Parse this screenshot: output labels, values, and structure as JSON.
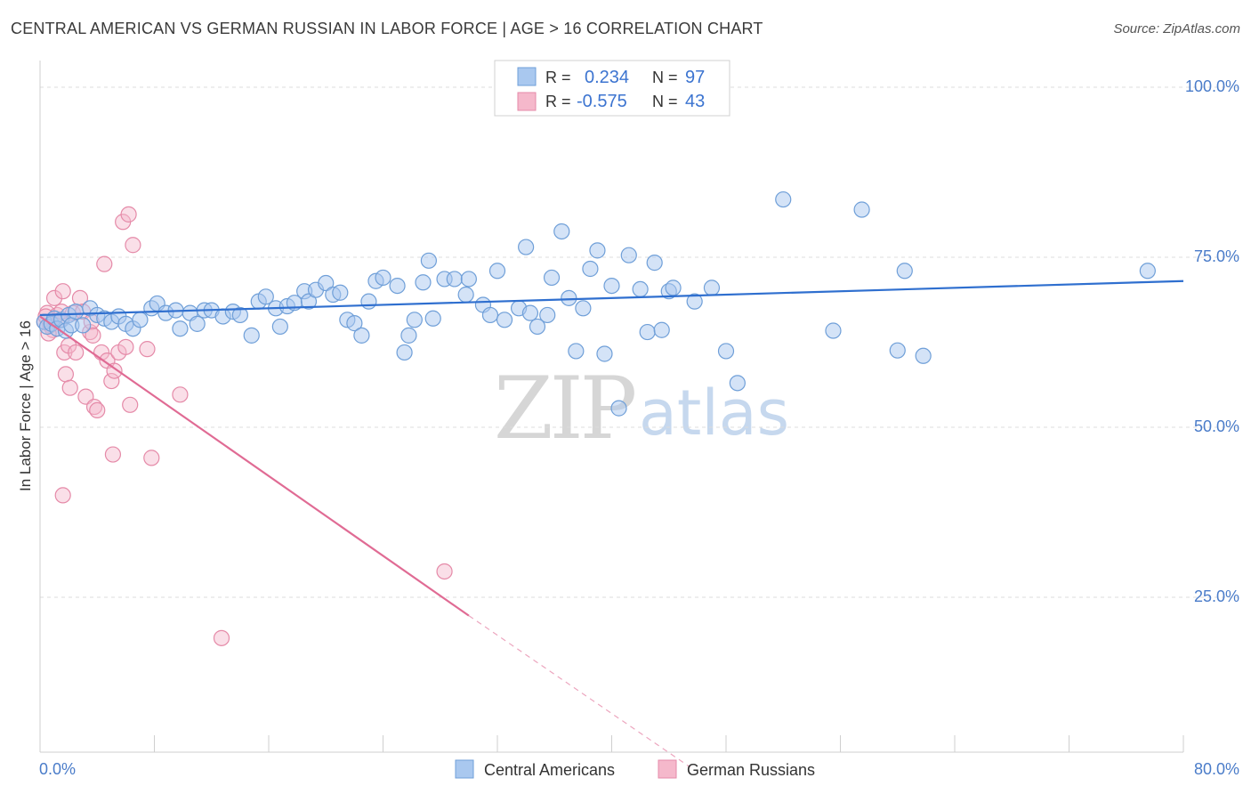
{
  "title": "CENTRAL AMERICAN VS GERMAN RUSSIAN IN LABOR FORCE | AGE > 16 CORRELATION CHART",
  "source": "Source: ZipAtlas.com",
  "watermark": {
    "zip": "ZIP",
    "atlas": "atlas"
  },
  "colors": {
    "blue_fill": "#a9c8ef",
    "blue_stroke": "#6f9fd8",
    "blue_line": "#2f6fcf",
    "pink_fill": "#f5b8cb",
    "pink_stroke": "#e58aa8",
    "pink_line": "#e06b94",
    "grid": "#dcdcdc",
    "tick_text": "#4a7cc9"
  },
  "legend": {
    "rows": [
      {
        "r_label": "R =",
        "r_value": "0.234",
        "n_label": "N =",
        "n_value": "97",
        "swatch": "blue"
      },
      {
        "r_label": "R =",
        "r_value": "-0.575",
        "n_label": "N =",
        "n_value": "43",
        "swatch": "pink"
      }
    ]
  },
  "bottom_legend": [
    {
      "label": "Central Americans",
      "swatch": "blue"
    },
    {
      "label": "German Russians",
      "swatch": "pink"
    }
  ],
  "chart_data": {
    "type": "scatter",
    "title": "CENTRAL AMERICAN VS GERMAN RUSSIAN IN LABOR FORCE | AGE > 16 CORRELATION CHART",
    "xlabel": "",
    "ylabel": "In Labor Force | Age > 16",
    "xlim": [
      0,
      80
    ],
    "ylim": [
      0,
      100
    ],
    "x_tick_labels": [
      "0.0%",
      "80.0%"
    ],
    "y_tick_labels": [
      "100.0%",
      "75.0%",
      "50.0%",
      "25.0%"
    ],
    "y_tick_values": [
      100,
      75,
      50,
      25
    ],
    "grid": true,
    "legend_position": "top-center",
    "series": [
      {
        "name": "Central Americans",
        "color": "#a9c8ef",
        "r": 0.234,
        "n": 97,
        "trend": {
          "x": [
            0,
            80
          ],
          "y": [
            66.5,
            71.5
          ]
        },
        "points": [
          [
            0.3,
            65.5
          ],
          [
            0.5,
            64.8
          ],
          [
            0.8,
            65.2
          ],
          [
            1.0,
            66.0
          ],
          [
            1.2,
            64.5
          ],
          [
            1.5,
            65.8
          ],
          [
            1.8,
            64.2
          ],
          [
            2.0,
            66.5
          ],
          [
            2.2,
            65.0
          ],
          [
            2.5,
            67.0
          ],
          [
            3.0,
            65.0
          ],
          [
            3.5,
            67.5
          ],
          [
            4.0,
            66.5
          ],
          [
            4.5,
            66.0
          ],
          [
            5.0,
            65.5
          ],
          [
            5.5,
            66.3
          ],
          [
            6.0,
            65.2
          ],
          [
            6.5,
            64.5
          ],
          [
            7.0,
            65.8
          ],
          [
            7.8,
            67.5
          ],
          [
            8.2,
            68.2
          ],
          [
            8.8,
            66.8
          ],
          [
            9.5,
            67.2
          ],
          [
            9.8,
            64.5
          ],
          [
            10.5,
            66.8
          ],
          [
            11.0,
            65.2
          ],
          [
            11.5,
            67.2
          ],
          [
            12.0,
            67.2
          ],
          [
            12.8,
            66.3
          ],
          [
            13.5,
            67.0
          ],
          [
            14.0,
            66.5
          ],
          [
            14.8,
            63.5
          ],
          [
            15.3,
            68.5
          ],
          [
            15.8,
            69.2
          ],
          [
            16.5,
            67.5
          ],
          [
            16.8,
            64.8
          ],
          [
            17.3,
            67.8
          ],
          [
            17.8,
            68.3
          ],
          [
            18.5,
            70.0
          ],
          [
            18.8,
            68.5
          ],
          [
            19.3,
            70.2
          ],
          [
            20.0,
            71.2
          ],
          [
            20.5,
            69.5
          ],
          [
            21.0,
            69.8
          ],
          [
            21.5,
            65.8
          ],
          [
            22.0,
            65.3
          ],
          [
            22.5,
            63.5
          ],
          [
            23.0,
            68.5
          ],
          [
            23.5,
            71.5
          ],
          [
            24.0,
            72.0
          ],
          [
            25.0,
            70.8
          ],
          [
            25.5,
            61.0
          ],
          [
            25.8,
            63.5
          ],
          [
            26.2,
            65.8
          ],
          [
            26.8,
            71.3
          ],
          [
            27.2,
            74.5
          ],
          [
            27.5,
            66.0
          ],
          [
            28.3,
            71.8
          ],
          [
            29.0,
            71.8
          ],
          [
            29.8,
            69.5
          ],
          [
            30.0,
            71.8
          ],
          [
            31.0,
            68.0
          ],
          [
            31.5,
            66.5
          ],
          [
            32.0,
            73.0
          ],
          [
            32.5,
            65.8
          ],
          [
            33.5,
            67.5
          ],
          [
            34.0,
            76.5
          ],
          [
            34.3,
            66.8
          ],
          [
            34.8,
            64.8
          ],
          [
            35.5,
            66.5
          ],
          [
            35.8,
            72.0
          ],
          [
            36.5,
            78.8
          ],
          [
            37.0,
            69.0
          ],
          [
            37.5,
            61.2
          ],
          [
            38.0,
            67.5
          ],
          [
            38.5,
            73.3
          ],
          [
            39.0,
            76.0
          ],
          [
            39.5,
            60.8
          ],
          [
            40.0,
            70.8
          ],
          [
            40.5,
            52.8
          ],
          [
            41.2,
            75.3
          ],
          [
            42.0,
            70.3
          ],
          [
            42.5,
            64.0
          ],
          [
            43.0,
            74.2
          ],
          [
            43.5,
            64.3
          ],
          [
            44.0,
            70.0
          ],
          [
            44.3,
            70.5
          ],
          [
            45.8,
            68.5
          ],
          [
            47.0,
            70.5
          ],
          [
            48.0,
            61.2
          ],
          [
            48.8,
            56.5
          ],
          [
            52.0,
            83.5
          ],
          [
            55.5,
            64.2
          ],
          [
            57.5,
            82.0
          ],
          [
            60.0,
            61.3
          ],
          [
            60.5,
            73.0
          ],
          [
            61.8,
            60.5
          ],
          [
            77.5,
            73.0
          ]
        ]
      },
      {
        "name": "German Russians",
        "color": "#f5b8cb",
        "r": -0.575,
        "n": 43,
        "trend": {
          "x": [
            0,
            30
          ],
          "y": [
            66.3,
            22.3
          ]
        },
        "trend_dashed": {
          "x": [
            30,
            45.5
          ],
          "y": [
            22.3,
            0
          ]
        },
        "points": [
          [
            0.3,
            65.5
          ],
          [
            0.5,
            66.8
          ],
          [
            0.7,
            65.0
          ],
          [
            0.9,
            64.3
          ],
          [
            1.0,
            69.0
          ],
          [
            1.2,
            66.5
          ],
          [
            1.4,
            65.8
          ],
          [
            1.5,
            67.0
          ],
          [
            1.6,
            70.0
          ],
          [
            1.7,
            61.0
          ],
          [
            1.8,
            57.8
          ],
          [
            2.0,
            62.0
          ],
          [
            2.1,
            55.8
          ],
          [
            2.3,
            66.8
          ],
          [
            2.5,
            61.0
          ],
          [
            2.8,
            69.0
          ],
          [
            3.0,
            67.0
          ],
          [
            3.2,
            54.5
          ],
          [
            3.5,
            64.0
          ],
          [
            3.6,
            65.5
          ],
          [
            3.7,
            63.5
          ],
          [
            3.8,
            53.0
          ],
          [
            4.0,
            52.5
          ],
          [
            4.3,
            61.0
          ],
          [
            4.5,
            74.0
          ],
          [
            4.7,
            59.8
          ],
          [
            5.0,
            56.8
          ],
          [
            5.1,
            46.0
          ],
          [
            5.2,
            58.3
          ],
          [
            5.5,
            61.0
          ],
          [
            5.8,
            80.2
          ],
          [
            6.0,
            61.8
          ],
          [
            6.2,
            81.3
          ],
          [
            6.3,
            53.3
          ],
          [
            6.5,
            76.8
          ],
          [
            7.5,
            61.5
          ],
          [
            7.8,
            45.5
          ],
          [
            9.8,
            54.8
          ],
          [
            1.6,
            40.0
          ],
          [
            12.7,
            19.0
          ],
          [
            28.3,
            28.8
          ],
          [
            0.4,
            66.3
          ],
          [
            0.6,
            63.8
          ]
        ]
      }
    ]
  }
}
